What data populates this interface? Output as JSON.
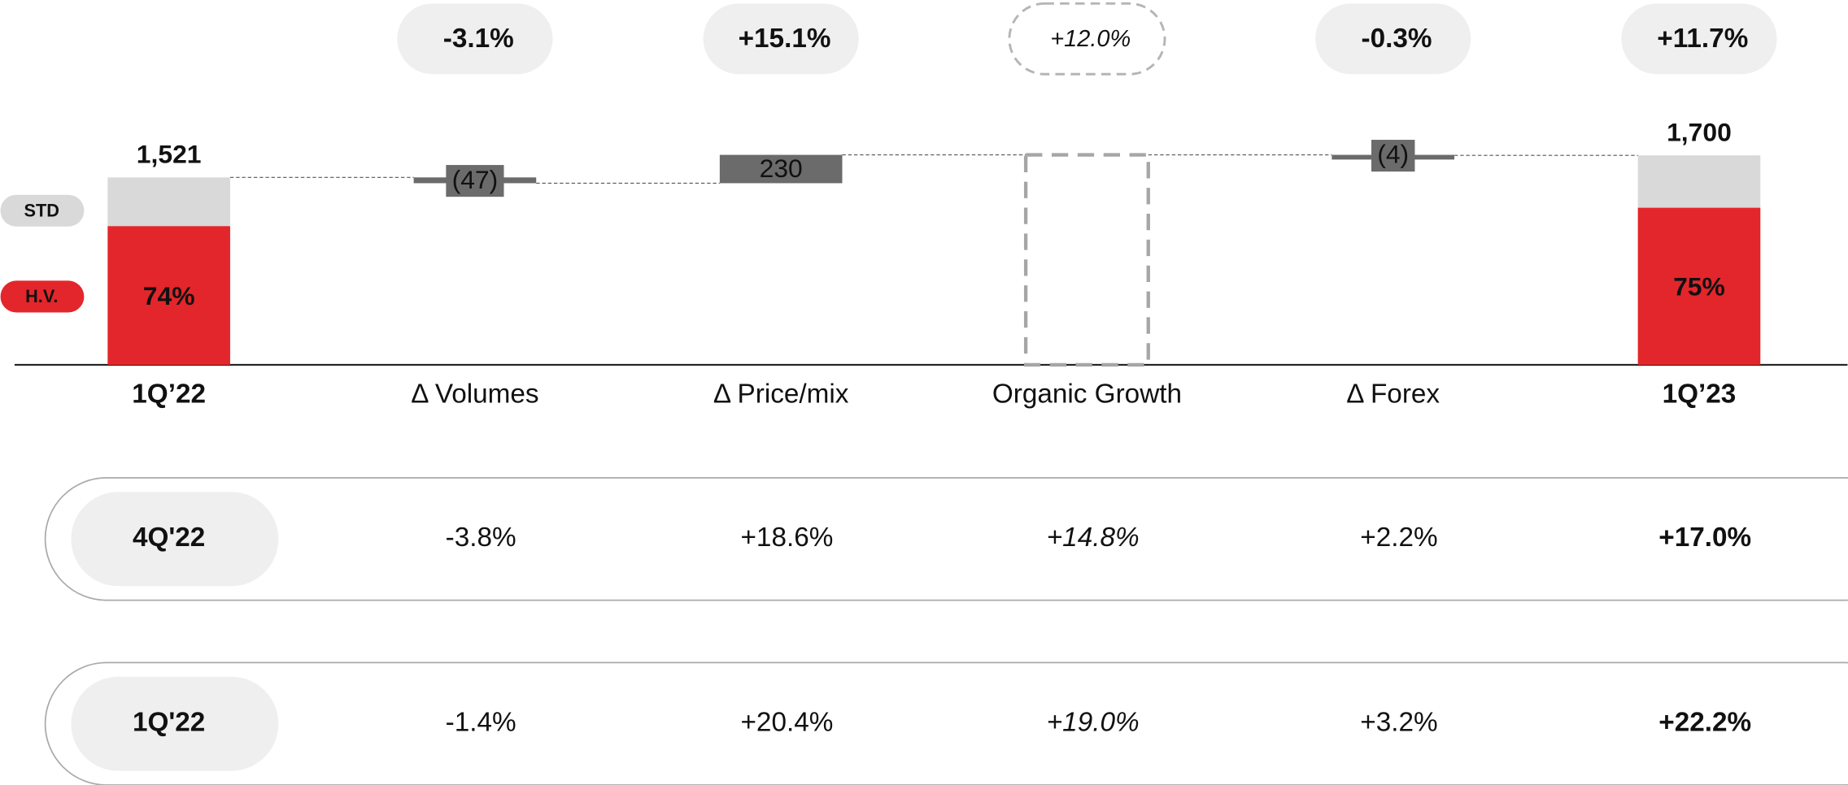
{
  "chart_data": {
    "type": "waterfall",
    "categories": [
      "1Q’22",
      "Δ Volumes",
      "Δ Price/mix",
      "Organic Growth",
      "Δ Forex",
      "1Q’23"
    ],
    "measures": [
      "absolute",
      "relative",
      "relative",
      "total",
      "relative",
      "absolute"
    ],
    "values": [
      1521,
      -47,
      230,
      1704,
      -4,
      1700
    ],
    "value_labels": [
      "1,521",
      "(47)",
      "230",
      null,
      "(4)",
      "1,700"
    ],
    "ylim": [
      0,
      1700
    ],
    "segments": [
      {
        "name": "STD",
        "color": "#d9d9d9"
      },
      {
        "name": "H.V.",
        "color": "#e3262b"
      }
    ],
    "hv_share": [
      74,
      null,
      null,
      null,
      null,
      75
    ],
    "hv_share_labels": [
      "74%",
      null,
      null,
      null,
      null,
      "75%"
    ],
    "bar_color": "#6b6b6b",
    "growth": [
      null,
      "-3.1%",
      "+15.1%",
      "+12.0%",
      "-0.3%",
      "+11.7%"
    ],
    "table": {
      "rows": [
        [
          "4Q'22",
          "-3.8%",
          "+18.6%",
          "+14.8%",
          "+2.2%",
          "+17.0%"
        ],
        [
          "1Q'22",
          "-1.4%",
          "+20.4%",
          "+19.0%",
          "+3.2%",
          "+22.2%"
        ]
      ]
    }
  }
}
